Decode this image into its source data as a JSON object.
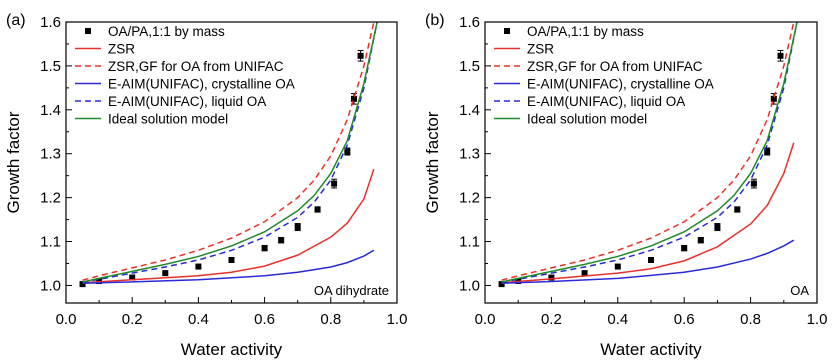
{
  "chart_data": [
    {
      "type": "line",
      "panel_label": "(a)",
      "xlabel": "Water activity",
      "ylabel": "Growth factor",
      "xlim": [
        0.0,
        1.0
      ],
      "ylim": [
        0.96,
        1.6
      ],
      "xticks": [
        0.0,
        0.2,
        0.4,
        0.6,
        0.8,
        1.0
      ],
      "yticks": [
        1.0,
        1.1,
        1.2,
        1.3,
        1.4,
        1.5,
        1.6
      ],
      "xtick_labels": [
        "0.0",
        "0.2",
        "0.4",
        "0.6",
        "0.8",
        "1.0"
      ],
      "ytick_labels": [
        "1.0",
        "1.1",
        "1.2",
        "1.3",
        "1.4",
        "1.5",
        "1.6"
      ],
      "annotation": "OA dihydrate",
      "legend_position": "top-left",
      "series": [
        {
          "name": "OA/PA,1:1 by mass",
          "kind": "scatter",
          "color": "#000000",
          "x": [
            0.05,
            0.1,
            0.2,
            0.3,
            0.4,
            0.5,
            0.6,
            0.65,
            0.7,
            0.76,
            0.81,
            0.85,
            0.87,
            0.89
          ],
          "y": [
            1.003,
            1.01,
            1.018,
            1.028,
            1.043,
            1.058,
            1.085,
            1.103,
            1.133,
            1.173,
            1.232,
            1.305,
            1.425,
            1.523
          ],
          "err": [
            0,
            0,
            0,
            0,
            0,
            0,
            0.006,
            0.006,
            0.008,
            0.006,
            0.01,
            0.008,
            0.012,
            0.012
          ]
        },
        {
          "name": "ZSR",
          "kind": "line",
          "color": "#e8312a",
          "dash": "solid",
          "x": [
            0.05,
            0.2,
            0.4,
            0.5,
            0.6,
            0.7,
            0.8,
            0.85,
            0.9,
            0.93
          ],
          "y": [
            1.006,
            1.013,
            1.022,
            1.03,
            1.044,
            1.069,
            1.11,
            1.142,
            1.197,
            1.265
          ]
        },
        {
          "name": "ZSR,GF for OA from UNIFAC",
          "kind": "line",
          "color": "#e8312a",
          "dash": "dashed",
          "x": [
            0.05,
            0.1,
            0.2,
            0.3,
            0.4,
            0.5,
            0.6,
            0.7,
            0.75,
            0.8,
            0.85,
            0.9,
            0.93
          ],
          "y": [
            1.012,
            1.022,
            1.04,
            1.058,
            1.08,
            1.108,
            1.145,
            1.2,
            1.24,
            1.295,
            1.378,
            1.5,
            1.6
          ]
        },
        {
          "name": "E-AIM(UNIFAC), crystalline OA",
          "kind": "line",
          "color": "#2a2ad8",
          "dash": "solid",
          "x": [
            0.05,
            0.2,
            0.4,
            0.6,
            0.7,
            0.8,
            0.85,
            0.9,
            0.93
          ],
          "y": [
            1.005,
            1.008,
            1.013,
            1.022,
            1.03,
            1.042,
            1.052,
            1.067,
            1.08
          ]
        },
        {
          "name": "E-AIM(UNIFAC), liquid OA",
          "kind": "line",
          "color": "#2a2ad8",
          "dash": "dashed",
          "x": [
            0.05,
            0.1,
            0.2,
            0.3,
            0.4,
            0.5,
            0.6,
            0.7,
            0.75,
            0.8,
            0.85,
            0.9,
            0.94
          ],
          "y": [
            1.007,
            1.014,
            1.028,
            1.042,
            1.058,
            1.08,
            1.11,
            1.155,
            1.19,
            1.24,
            1.32,
            1.45,
            1.6
          ]
        },
        {
          "name": "Ideal solution model",
          "kind": "line",
          "color": "#1f8a2a",
          "dash": "solid",
          "x": [
            0.05,
            0.1,
            0.2,
            0.3,
            0.4,
            0.5,
            0.6,
            0.7,
            0.75,
            0.8,
            0.85,
            0.9,
            0.94
          ],
          "y": [
            1.008,
            1.016,
            1.032,
            1.048,
            1.066,
            1.09,
            1.122,
            1.17,
            1.205,
            1.255,
            1.33,
            1.46,
            1.6
          ]
        }
      ]
    },
    {
      "type": "line",
      "panel_label": "(b)",
      "xlabel": "Water activity",
      "ylabel": "Growth factor",
      "xlim": [
        0.0,
        1.0
      ],
      "ylim": [
        0.96,
        1.6
      ],
      "xticks": [
        0.0,
        0.2,
        0.4,
        0.6,
        0.8,
        1.0
      ],
      "yticks": [
        1.0,
        1.1,
        1.2,
        1.3,
        1.4,
        1.5,
        1.6
      ],
      "xtick_labels": [
        "0.0",
        "0.2",
        "0.4",
        "0.6",
        "0.8",
        "1.0"
      ],
      "ytick_labels": [
        "1.0",
        "1.1",
        "1.2",
        "1.3",
        "1.4",
        "1.5",
        "1.6"
      ],
      "annotation": "OA",
      "legend_position": "top-left",
      "series": [
        {
          "name": "OA/PA,1:1 by mass",
          "kind": "scatter",
          "color": "#000000",
          "x": [
            0.05,
            0.1,
            0.2,
            0.3,
            0.4,
            0.5,
            0.6,
            0.65,
            0.7,
            0.76,
            0.81,
            0.85,
            0.87,
            0.89
          ],
          "y": [
            1.003,
            1.01,
            1.018,
            1.028,
            1.043,
            1.058,
            1.085,
            1.103,
            1.133,
            1.173,
            1.232,
            1.305,
            1.425,
            1.523
          ],
          "err": [
            0,
            0,
            0,
            0,
            0,
            0,
            0.006,
            0.006,
            0.008,
            0.006,
            0.01,
            0.008,
            0.012,
            0.012
          ]
        },
        {
          "name": "ZSR",
          "kind": "line",
          "color": "#e8312a",
          "dash": "solid",
          "x": [
            0.05,
            0.2,
            0.4,
            0.5,
            0.6,
            0.7,
            0.8,
            0.85,
            0.9,
            0.93
          ],
          "y": [
            1.006,
            1.015,
            1.028,
            1.038,
            1.056,
            1.088,
            1.14,
            1.182,
            1.255,
            1.325
          ]
        },
        {
          "name": "ZSR,GF for OA from UNIFAC",
          "kind": "line",
          "color": "#e8312a",
          "dash": "dashed",
          "x": [
            0.05,
            0.1,
            0.2,
            0.3,
            0.4,
            0.5,
            0.6,
            0.7,
            0.75,
            0.8,
            0.85,
            0.9,
            0.93
          ],
          "y": [
            1.012,
            1.022,
            1.04,
            1.058,
            1.08,
            1.108,
            1.145,
            1.2,
            1.24,
            1.295,
            1.378,
            1.5,
            1.6
          ]
        },
        {
          "name": "E-AIM(UNIFAC), crystalline OA",
          "kind": "line",
          "color": "#2a2ad8",
          "dash": "solid",
          "x": [
            0.05,
            0.2,
            0.4,
            0.6,
            0.7,
            0.8,
            0.85,
            0.9,
            0.93
          ],
          "y": [
            1.005,
            1.009,
            1.016,
            1.03,
            1.042,
            1.06,
            1.073,
            1.09,
            1.103
          ]
        },
        {
          "name": "E-AIM(UNIFAC), liquid OA",
          "kind": "line",
          "color": "#2a2ad8",
          "dash": "dashed",
          "x": [
            0.05,
            0.1,
            0.2,
            0.3,
            0.4,
            0.5,
            0.6,
            0.7,
            0.75,
            0.8,
            0.85,
            0.9,
            0.94
          ],
          "y": [
            1.007,
            1.014,
            1.028,
            1.042,
            1.058,
            1.08,
            1.11,
            1.155,
            1.19,
            1.24,
            1.32,
            1.45,
            1.6
          ]
        },
        {
          "name": "Ideal solution model",
          "kind": "line",
          "color": "#1f8a2a",
          "dash": "solid",
          "x": [
            0.05,
            0.1,
            0.2,
            0.3,
            0.4,
            0.5,
            0.6,
            0.7,
            0.75,
            0.8,
            0.85,
            0.9,
            0.94
          ],
          "y": [
            1.008,
            1.016,
            1.032,
            1.048,
            1.066,
            1.09,
            1.122,
            1.17,
            1.205,
            1.255,
            1.33,
            1.46,
            1.6
          ]
        }
      ]
    }
  ]
}
